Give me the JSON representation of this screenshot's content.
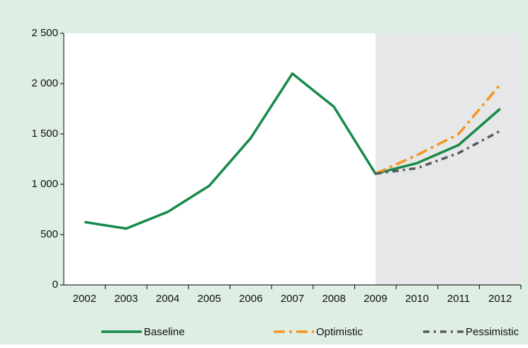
{
  "chart_data": {
    "type": "line",
    "categories": [
      "2002",
      "2003",
      "2004",
      "2005",
      "2006",
      "2007",
      "2008",
      "2009",
      "2010",
      "2011",
      "2012"
    ],
    "series": [
      {
        "name": "Baseline",
        "color": "#17894a",
        "linestyle": "solid",
        "values": [
          625,
          560,
          725,
          985,
          1460,
          2100,
          1770,
          1105,
          1210,
          1390,
          1750
        ]
      },
      {
        "name": "Optimistic",
        "color": "#f7941d",
        "linestyle": "dashdot",
        "values": [
          null,
          null,
          null,
          null,
          null,
          null,
          null,
          1105,
          1290,
          1500,
          1990
        ]
      },
      {
        "name": "Pessimistic",
        "color": "#58595b",
        "linestyle": "dashdot",
        "values": [
          null,
          null,
          null,
          null,
          null,
          null,
          null,
          1105,
          1160,
          1310,
          1530
        ]
      }
    ],
    "ylim": [
      0,
      2500
    ],
    "yticks": [
      0,
      500,
      {
        "value": 1000,
        "label": "1 000"
      },
      {
        "value": 1500,
        "label": "1 500"
      },
      {
        "value": 2000,
        "label": "2 000"
      },
      {
        "value": 2500,
        "label": "2 500"
      }
    ],
    "shade_from": "2009",
    "shade_color": "#e6e7e8",
    "background": "#deeee2",
    "legend": "bottom"
  }
}
